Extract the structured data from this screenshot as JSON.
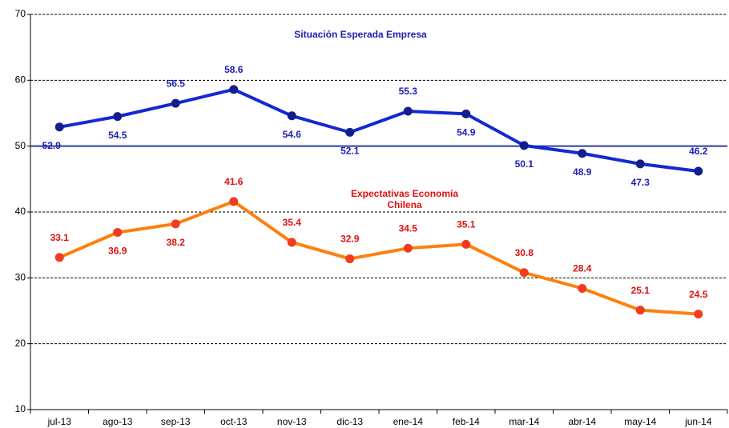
{
  "chart_data": {
    "type": "line",
    "categories": [
      "jul-13",
      "ago-13",
      "sep-13",
      "oct-13",
      "nov-13",
      "dic-13",
      "ene-14",
      "feb-14",
      "mar-14",
      "abr-14",
      "may-14",
      "jun-14"
    ],
    "series": [
      {
        "name": "Situación Esperada Empresa",
        "color": "#1428d2",
        "marker_color": "#141e8c",
        "label_color": "#1e1eb4",
        "values": [
          52.9,
          54.5,
          56.5,
          58.6,
          54.6,
          52.1,
          55.3,
          54.9,
          50.1,
          48.9,
          47.3,
          46.2
        ]
      },
      {
        "name": "Expectativas Economía Chilena",
        "color": "#ff7f0e",
        "marker_color": "#f03c1e",
        "label_color": "#e01010",
        "values": [
          33.1,
          36.9,
          38.2,
          41.6,
          35.4,
          32.9,
          34.5,
          35.1,
          30.8,
          28.4,
          25.1,
          24.5
        ]
      }
    ],
    "reference_line": 50,
    "ylim": [
      10,
      70
    ],
    "yticks": [
      10,
      20,
      30,
      40,
      50,
      60,
      70
    ],
    "grid": true
  }
}
